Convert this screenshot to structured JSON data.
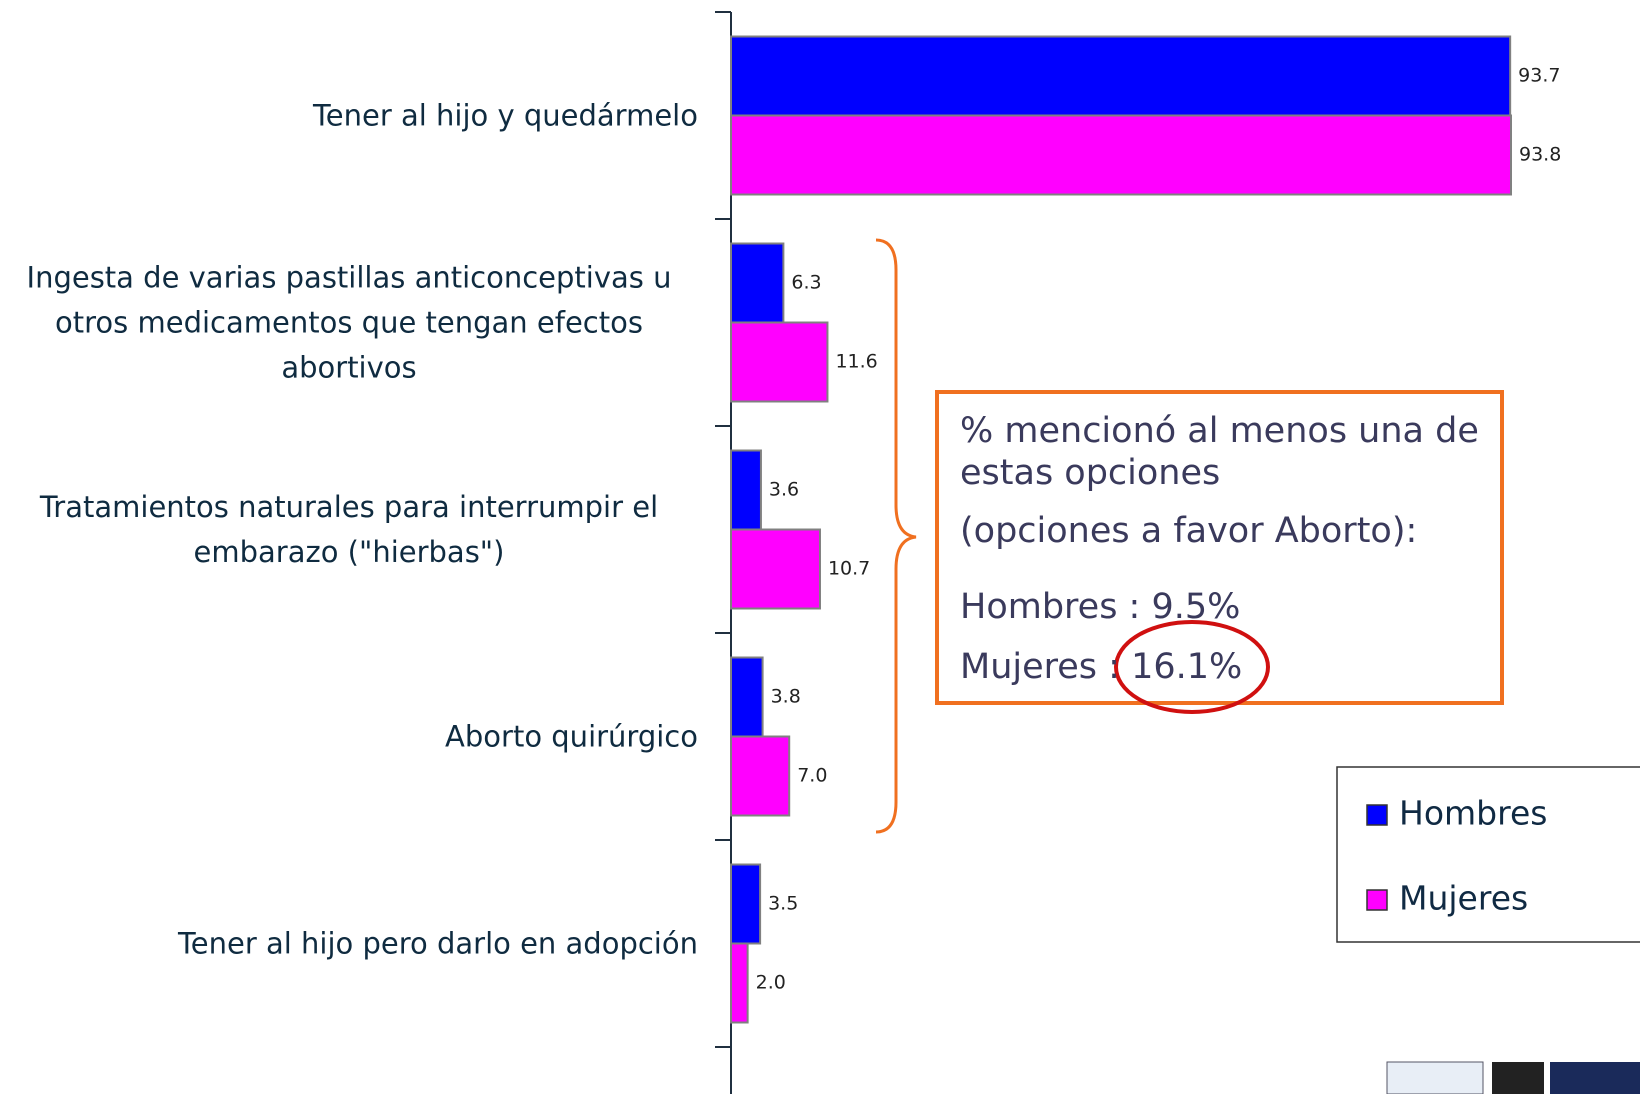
{
  "chart_data": {
    "type": "bar",
    "orientation": "horizontal",
    "categories": [
      "Tener al hijo y quedármelo",
      "Ingesta de varias pastillas anticonceptivas u otros medicamentos que tengan efectos abortivos",
      "Tratamientos naturales para interrumpir el embarazo (\"hierbas\")",
      "Aborto quirúrgico",
      "Tener al hijo pero darlo en adopción"
    ],
    "series": [
      {
        "name": "Hombres",
        "color": "#0000ff",
        "values": [
          93.7,
          6.3,
          3.6,
          3.8,
          3.5
        ],
        "value_labels": [
          "93.7",
          "6.3",
          "3.6",
          "3.8",
          "3.5"
        ]
      },
      {
        "name": "Mujeres",
        "color": "#ff00ff",
        "values": [
          93.8,
          11.6,
          10.7,
          7.0,
          2.0
        ],
        "value_labels": [
          "93.8",
          "11.6",
          "10.7",
          "7.0",
          "2.0"
        ]
      }
    ],
    "legend": "right",
    "annotation": {
      "heading": "% mencionó al menos una de estas opciones",
      "subheading": "(opciones a favor Aborto):",
      "lines": [
        "Hombres : 9.5%",
        "Mujeres : 16.1%"
      ]
    }
  }
}
